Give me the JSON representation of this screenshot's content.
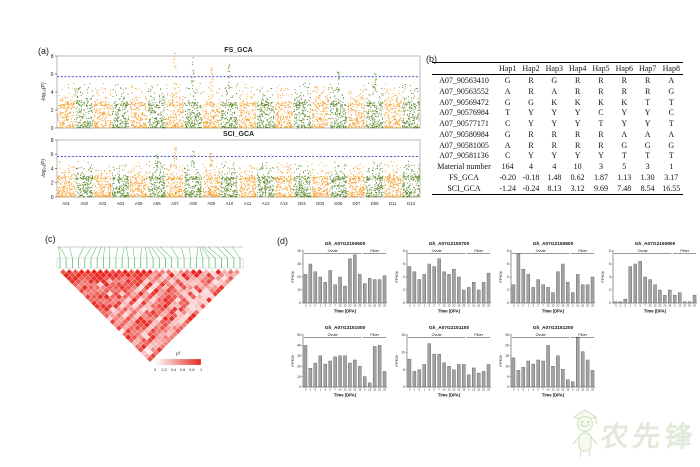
{
  "panels": {
    "a_label": "(a)",
    "b_label": "(b)",
    "c_label": "(c)",
    "d_label": "(d)"
  },
  "watermark": {
    "text": "农先锋",
    "color": "#9fb885"
  },
  "table": {
    "columns": [
      "",
      "Hap1",
      "Hap2",
      "Hap3",
      "Hap4",
      "Hap5",
      "Hap6",
      "Hap7",
      "Hap8"
    ],
    "rows": [
      [
        "A07_90563410",
        "G",
        "R",
        "G",
        "R",
        "R",
        "R",
        "R",
        "A"
      ],
      [
        "A07_90563552",
        "A",
        "R",
        "A",
        "R",
        "R",
        "R",
        "R",
        "G"
      ],
      [
        "A07_90569472",
        "G",
        "G",
        "K",
        "K",
        "K",
        "K",
        "T",
        "T"
      ],
      [
        "A07_90576984",
        "T",
        "Y",
        "Y",
        "Y",
        "C",
        "Y",
        "Y",
        "C"
      ],
      [
        "A07_90577171",
        "C",
        "Y",
        "Y",
        "Y",
        "T",
        "Y",
        "Y",
        "T"
      ],
      [
        "A07_90580984",
        "G",
        "R",
        "R",
        "R",
        "R",
        "A",
        "A",
        "A"
      ],
      [
        "A07_90581005",
        "A",
        "R",
        "R",
        "R",
        "R",
        "G",
        "G",
        "G"
      ],
      [
        "A07_90581136",
        "C",
        "Y",
        "Y",
        "Y",
        "Y",
        "T",
        "T",
        "T"
      ],
      [
        "Material number",
        "164",
        "4",
        "4",
        "10",
        "3",
        "5",
        "3",
        "1"
      ],
      [
        "FS_GCA",
        "-0.20",
        "-0.18",
        "1.48",
        "0.62",
        "1.87",
        "1.13",
        "1.30",
        "3.17"
      ],
      [
        "SCI_GCA",
        "-1.24",
        "-0.24",
        "8.13",
        "3.12",
        "9.69",
        "7.48",
        "8.54",
        "16.55"
      ]
    ]
  },
  "chart_data": [
    {
      "id": "fs_gca",
      "type": "scatter",
      "variant": "manhattan",
      "title": "FS_GCA",
      "ylabel": "-log₁₀(P)",
      "ylim": [
        0,
        8
      ],
      "yticks": [
        0,
        2,
        4,
        6,
        8
      ],
      "threshold": 5.7,
      "threshold_color": "#3A41C8",
      "categories": [
        "A01",
        "A02",
        "A03",
        "A04",
        "A05",
        "A06",
        "A07",
        "A08",
        "A09",
        "A10",
        "A11",
        "A12",
        "A13",
        "D01",
        "D03",
        "D05",
        "D07",
        "D09",
        "D11",
        "D13"
      ],
      "point_colors": [
        "#F59B23",
        "#5C8727"
      ],
      "peaks": [
        [
          "A07",
          8.3
        ],
        [
          "A08",
          7.8
        ],
        [
          "A09",
          6.7
        ],
        [
          "A10",
          7.0
        ],
        [
          "D05",
          6.2
        ],
        [
          "D09",
          6.0
        ]
      ],
      "grid": false,
      "seed": 42
    },
    {
      "id": "sci_gca",
      "type": "scatter",
      "variant": "manhattan",
      "title": "SCI_GCA",
      "ylabel": "-log₁₀(P)",
      "ylim": [
        0,
        8
      ],
      "yticks": [
        0,
        2,
        4,
        6,
        8
      ],
      "threshold": 5.7,
      "threshold_color": "#3A41C8",
      "categories": [
        "A01",
        "A02",
        "A03",
        "A04",
        "A05",
        "A06",
        "A07",
        "A08",
        "A09",
        "A10",
        "A11",
        "A12",
        "A13",
        "D01",
        "D03",
        "D05",
        "D07",
        "D09",
        "D11",
        "D13"
      ],
      "point_colors": [
        "#F59B23",
        "#5C8727"
      ],
      "peaks": [
        [
          "A07",
          6.9
        ],
        [
          "A08",
          6.4
        ],
        [
          "A09",
          6.1
        ],
        [
          "A06",
          5.9
        ]
      ],
      "grid": false,
      "seed": 77
    },
    {
      "id": "ld",
      "type": "heatmap",
      "variant": "ld-triangle",
      "n_markers": 30,
      "legend_label": "r²",
      "legend_ticks": [
        "0",
        "0.2",
        "0.4",
        "0.6",
        "0.8",
        "1"
      ],
      "color_low": "#ffffff",
      "color_high": "#e8261f",
      "connector_color": "#5fbf6f",
      "seed": 7
    },
    {
      "id": "bar1",
      "type": "bar",
      "title": "Gh_A07G2150600",
      "ylabel": "FPKM",
      "xlabel": "Time (DPA)",
      "ylim": [
        0,
        40
      ],
      "yticks": [
        0,
        10,
        20,
        30,
        40
      ],
      "categories": [
        "-3",
        "-1",
        "0",
        "1",
        "3",
        "5",
        "7",
        "10",
        "15",
        "20",
        "25",
        "35",
        "5",
        "10",
        "15",
        "20",
        "25"
      ],
      "values": [
        22,
        30,
        24,
        20,
        16,
        25,
        14,
        20,
        13,
        34,
        37,
        22,
        15,
        19,
        18,
        18,
        21
      ],
      "groups": [
        {
          "label": "Ovule",
          "from": 0,
          "to": 11
        },
        {
          "label": "Fiber",
          "from": 12,
          "to": 16
        }
      ]
    },
    {
      "id": "bar2",
      "type": "bar",
      "title": "Gh_A07G2150700",
      "ylabel": "FPKM",
      "xlabel": "Time (DPA)",
      "ylim": [
        0,
        8
      ],
      "yticks": [
        0,
        2,
        4,
        6,
        8
      ],
      "categories": [
        "-3",
        "-1",
        "0",
        "1",
        "3",
        "5",
        "7",
        "10",
        "15",
        "20",
        "25",
        "35",
        "5",
        "10",
        "15",
        "20",
        "25"
      ],
      "values": [
        5.6,
        4.8,
        3.6,
        4.4,
        6.0,
        5.6,
        6.8,
        4.8,
        4.4,
        5.2,
        4.0,
        2.0,
        2.4,
        3.2,
        2.0,
        3.2,
        4.6
      ],
      "groups": [
        {
          "label": "Ovule",
          "from": 0,
          "to": 11
        },
        {
          "label": "Fiber",
          "from": 12,
          "to": 16
        }
      ]
    },
    {
      "id": "bar3",
      "type": "bar",
      "title": "Gh_A07G2150800",
      "ylabel": "FPKM",
      "xlabel": "Time (DPA)",
      "ylim": [
        0,
        8
      ],
      "yticks": [
        0,
        2,
        4,
        6,
        8
      ],
      "categories": [
        "-3",
        "-1",
        "0",
        "1",
        "3",
        "5",
        "7",
        "10",
        "15",
        "20",
        "25",
        "35",
        "5",
        "10",
        "15",
        "20",
        "25"
      ],
      "values": [
        2.8,
        7.6,
        5.2,
        4.4,
        2.4,
        3.6,
        2.8,
        2.4,
        1.6,
        4.8,
        6.0,
        3.2,
        1.6,
        4.4,
        2.8,
        2.8,
        4.0
      ],
      "groups": [
        {
          "label": "Ovule",
          "from": 0,
          "to": 11
        },
        {
          "label": "Fiber",
          "from": 12,
          "to": 16
        }
      ]
    },
    {
      "id": "bar4",
      "type": "bar",
      "title": "Gh_A07G2150900",
      "ylabel": "FPKM",
      "xlabel": "Time (DPA)",
      "ylim": [
        0,
        8
      ],
      "yticks": [
        0,
        2,
        4,
        6,
        8
      ],
      "categories": [
        "-3",
        "-1",
        "0",
        "1",
        "3",
        "5",
        "7",
        "10",
        "15",
        "20",
        "25",
        "35",
        "5",
        "10",
        "15",
        "20",
        "25"
      ],
      "values": [
        0.2,
        0.2,
        0.6,
        5.6,
        6.0,
        6.4,
        4.0,
        3.6,
        2.8,
        2.0,
        1.2,
        2.0,
        1.2,
        1.6,
        0.2,
        0.2,
        1.2
      ],
      "groups": [
        {
          "label": "Ovule",
          "from": 0,
          "to": 11
        },
        {
          "label": "Fiber",
          "from": 12,
          "to": 16
        }
      ]
    },
    {
      "id": "bar5",
      "type": "bar",
      "title": "Gh_A07G2151000",
      "ylabel": "FPKM",
      "xlabel": "Time (DPA)",
      "ylim": [
        0,
        50
      ],
      "yticks": [
        0,
        10,
        20,
        30,
        40,
        50
      ],
      "categories": [
        "-3",
        "-1",
        "0",
        "1",
        "3",
        "5",
        "7",
        "10",
        "15",
        "20",
        "25",
        "35",
        "5",
        "10",
        "15",
        "20",
        "25"
      ],
      "values": [
        40,
        18,
        23,
        30,
        22,
        25,
        29,
        30,
        30,
        23,
        26,
        20,
        10,
        4,
        39,
        40,
        15
      ],
      "groups": [
        {
          "label": "Ovule",
          "from": 0,
          "to": 11
        },
        {
          "label": "Fiber",
          "from": 12,
          "to": 16
        }
      ]
    },
    {
      "id": "bar6",
      "type": "bar",
      "title": "Gh_A07G2151100",
      "ylabel": "FPKM",
      "xlabel": "Time (DPA)",
      "ylim": [
        0,
        15
      ],
      "yticks": [
        0,
        5,
        10,
        15
      ],
      "categories": [
        "-3",
        "-1",
        "0",
        "1",
        "3",
        "5",
        "7",
        "10",
        "15",
        "20",
        "25",
        "35",
        "5",
        "10",
        "15",
        "20",
        "25"
      ],
      "values": [
        8,
        4.5,
        5,
        6.5,
        12.5,
        9.5,
        9.5,
        7,
        6,
        5,
        6.5,
        6.5,
        3.5,
        5.5,
        4,
        4.5,
        6.5
      ],
      "groups": [
        {
          "label": "Ovule",
          "from": 0,
          "to": 11
        },
        {
          "label": "Fiber",
          "from": 12,
          "to": 16
        }
      ]
    },
    {
      "id": "bar7",
      "type": "bar",
      "title": "Gh_A07G2151200",
      "ylabel": "FPKM",
      "xlabel": "Time (DPA)",
      "ylim": [
        0,
        25
      ],
      "yticks": [
        0,
        5,
        10,
        15,
        20,
        25
      ],
      "categories": [
        "-3",
        "-1",
        "0",
        "1",
        "3",
        "5",
        "7",
        "10",
        "15",
        "20",
        "25",
        "35",
        "5",
        "10",
        "15",
        "20",
        "25"
      ],
      "values": [
        14,
        8,
        9.5,
        12.5,
        11,
        13,
        12.5,
        20,
        10,
        15,
        8.5,
        3.5,
        2.5,
        24,
        17,
        13,
        8
      ],
      "groups": [
        {
          "label": "Ovule",
          "from": 0,
          "to": 11
        },
        {
          "label": "Fiber",
          "from": 12,
          "to": 16
        }
      ]
    }
  ]
}
